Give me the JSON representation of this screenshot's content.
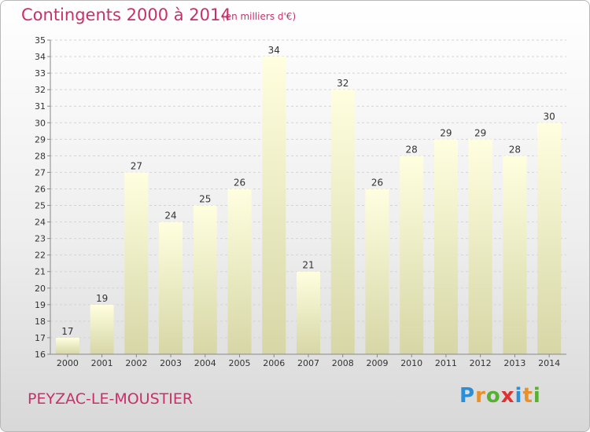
{
  "header": {
    "title": "Contingents 2000 à 2014",
    "subtitle": "(en milliers d'€)"
  },
  "footer": {
    "commune": "PEYZAC-LE-MOUSTIER",
    "logo_letters": [
      "P",
      "r",
      "o",
      "x",
      "i",
      "t",
      "i"
    ],
    "logo_colors": [
      "#2a8fd8",
      "#e8902a",
      "#58b030",
      "#e03030",
      "#2a8fd8",
      "#e8902a",
      "#58b030"
    ]
  },
  "colors": {
    "title": "#c8306a",
    "bar_top": "#ffffe0",
    "bar_bottom": "#d6d6a6"
  },
  "chart_data": {
    "type": "bar",
    "categories": [
      "2000",
      "2001",
      "2002",
      "2003",
      "2004",
      "2005",
      "2006",
      "2007",
      "2008",
      "2009",
      "2010",
      "2011",
      "2012",
      "2013",
      "2014"
    ],
    "values": [
      17,
      19,
      27,
      24,
      25,
      26,
      34,
      21,
      32,
      26,
      28,
      29,
      29,
      28,
      30
    ],
    "ylim": [
      16,
      35
    ],
    "yticks": [
      "16",
      "17",
      "18",
      "19",
      "20",
      "21",
      "22",
      "23",
      "24",
      "25",
      "26",
      "27",
      "28",
      "29",
      "30",
      "31",
      "32",
      "33",
      "34",
      "35"
    ],
    "grid": true,
    "data_labels": true
  }
}
